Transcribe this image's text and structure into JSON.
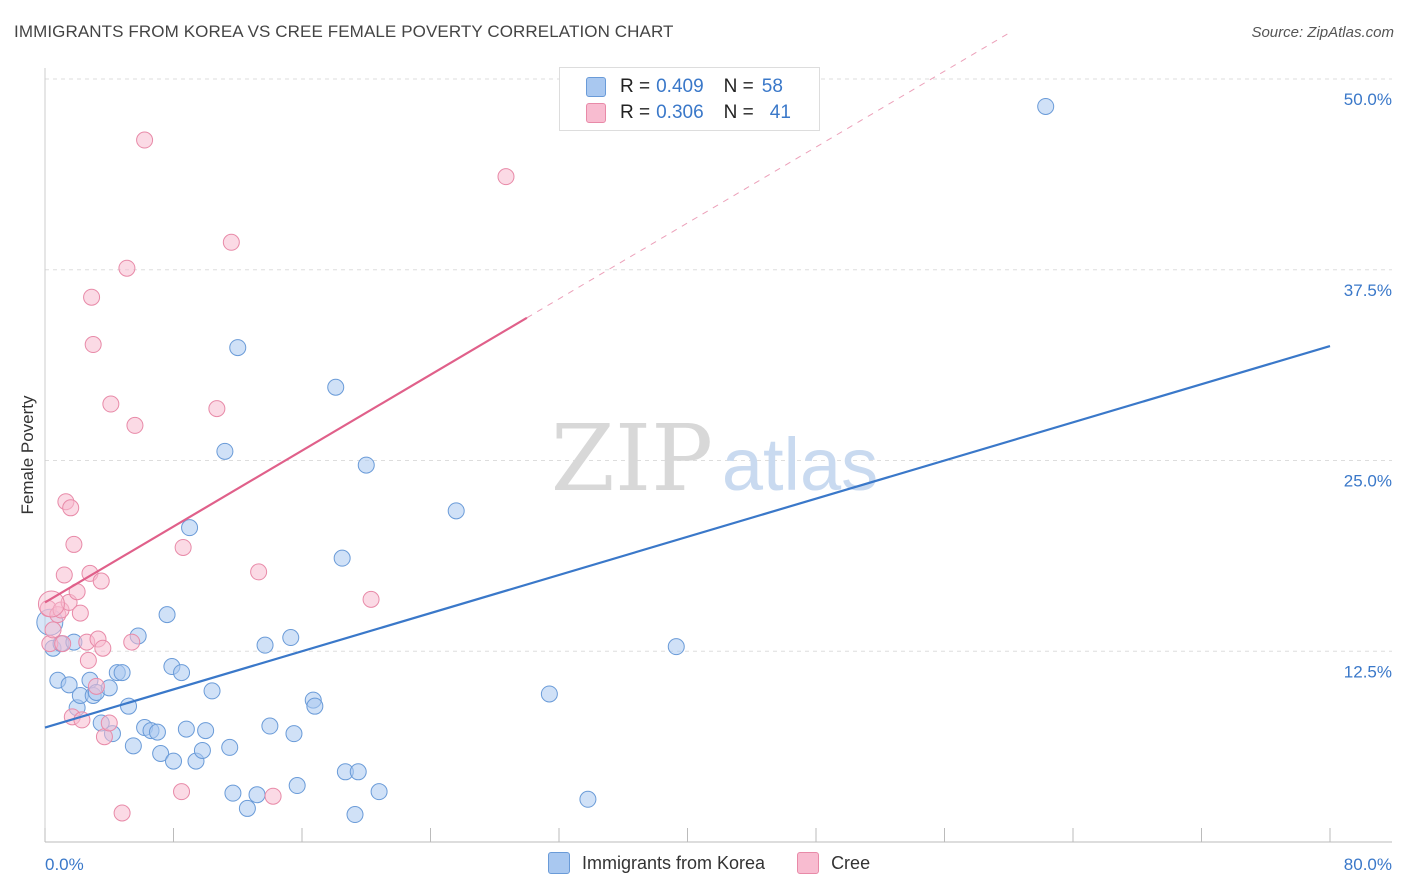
{
  "title": "IMMIGRANTS FROM KOREA VS CREE FEMALE POVERTY CORRELATION CHART",
  "source": "Source: ZipAtlas.com",
  "watermark": {
    "zip": "ZIP",
    "atlas": "atlas"
  },
  "legend": {
    "series": [
      {
        "r_label": "R =",
        "r_value": "0.409",
        "n_label": "N =",
        "n_value": "58"
      },
      {
        "r_label": "R =",
        "r_value": "0.306",
        "n_label": "N =",
        "n_value": "41"
      }
    ]
  },
  "colors": {
    "korea_fill": "#a9c8f0",
    "korea_stroke": "#6a9bd8",
    "korea_line": "#3a78c9",
    "cree_fill": "#f8bcd0",
    "cree_stroke": "#e88aa8",
    "cree_line": "#e0608a",
    "grid": "#dddddd",
    "tick_text": "#3a78c9"
  },
  "chart_data": {
    "type": "scatter",
    "title": "IMMIGRANTS FROM KOREA VS CREE FEMALE POVERTY CORRELATION CHART",
    "xlabel": "",
    "ylabel": "Female Poverty",
    "xlim": [
      0,
      80
    ],
    "ylim": [
      0,
      50
    ],
    "x_tick_labels": [
      "0.0%",
      "80.0%"
    ],
    "y_ticks": [
      12.5,
      25.0,
      37.5,
      50.0
    ],
    "y_tick_labels": [
      "12.5%",
      "25.0%",
      "37.5%",
      "50.0%"
    ],
    "grid": true,
    "series": [
      {
        "name": "Immigrants from Korea",
        "r": 0.409,
        "n": 58,
        "trend": {
          "x0": 0,
          "y0": 7.5,
          "x1": 80,
          "y1": 32.5,
          "dashed_from": null
        },
        "points": [
          [
            0.5,
            12.7
          ],
          [
            0.8,
            10.6
          ],
          [
            1.0,
            13.0
          ],
          [
            1.5,
            10.3
          ],
          [
            1.8,
            13.1
          ],
          [
            2.0,
            8.8
          ],
          [
            2.2,
            9.6
          ],
          [
            2.8,
            10.6
          ],
          [
            3.0,
            9.6
          ],
          [
            3.2,
            9.8
          ],
          [
            3.5,
            7.8
          ],
          [
            4.0,
            10.1
          ],
          [
            4.2,
            7.1
          ],
          [
            4.5,
            11.1
          ],
          [
            4.8,
            11.1
          ],
          [
            5.2,
            8.9
          ],
          [
            5.5,
            6.3
          ],
          [
            5.8,
            13.5
          ],
          [
            6.2,
            7.5
          ],
          [
            6.6,
            7.3
          ],
          [
            7.0,
            7.2
          ],
          [
            7.2,
            5.8
          ],
          [
            7.6,
            14.9
          ],
          [
            7.9,
            11.5
          ],
          [
            8.0,
            5.3
          ],
          [
            8.5,
            11.1
          ],
          [
            8.8,
            7.4
          ],
          [
            9.0,
            20.6
          ],
          [
            9.4,
            5.3
          ],
          [
            9.8,
            6.0
          ],
          [
            10.0,
            7.3
          ],
          [
            10.4,
            9.9
          ],
          [
            11.2,
            25.6
          ],
          [
            11.5,
            6.2
          ],
          [
            11.7,
            3.2
          ],
          [
            12.0,
            32.4
          ],
          [
            12.6,
            2.2
          ],
          [
            13.2,
            3.1
          ],
          [
            13.7,
            12.9
          ],
          [
            14.0,
            7.6
          ],
          [
            15.3,
            13.4
          ],
          [
            15.5,
            7.1
          ],
          [
            15.7,
            3.7
          ],
          [
            16.7,
            9.3
          ],
          [
            16.8,
            8.9
          ],
          [
            18.1,
            29.8
          ],
          [
            18.5,
            18.6
          ],
          [
            18.7,
            4.6
          ],
          [
            19.3,
            1.8
          ],
          [
            19.5,
            4.6
          ],
          [
            20.0,
            24.7
          ],
          [
            20.8,
            3.3
          ],
          [
            25.6,
            21.7
          ],
          [
            31.4,
            9.7
          ],
          [
            33.8,
            2.8
          ],
          [
            39.3,
            12.8
          ],
          [
            62.3,
            48.2
          ],
          [
            0.3,
            14.4
          ]
        ]
      },
      {
        "name": "Cree",
        "r": 0.306,
        "n": 41,
        "trend": {
          "x0": 0,
          "y0": 15.7,
          "x1": 60,
          "y1": 53.0,
          "dashed_from": 30
        },
        "points": [
          [
            0.2,
            15.3
          ],
          [
            0.3,
            13.0
          ],
          [
            0.5,
            13.9
          ],
          [
            0.8,
            14.9
          ],
          [
            1.0,
            15.2
          ],
          [
            1.1,
            13.0
          ],
          [
            1.2,
            17.5
          ],
          [
            1.3,
            22.3
          ],
          [
            1.5,
            15.7
          ],
          [
            1.6,
            21.9
          ],
          [
            1.7,
            8.2
          ],
          [
            1.8,
            19.5
          ],
          [
            2.0,
            16.4
          ],
          [
            2.2,
            15.0
          ],
          [
            2.3,
            8.0
          ],
          [
            2.6,
            13.1
          ],
          [
            2.7,
            11.9
          ],
          [
            2.8,
            17.6
          ],
          [
            2.9,
            35.7
          ],
          [
            3.0,
            32.6
          ],
          [
            3.2,
            10.2
          ],
          [
            3.3,
            13.3
          ],
          [
            3.5,
            17.1
          ],
          [
            3.6,
            12.7
          ],
          [
            3.7,
            6.9
          ],
          [
            4.0,
            7.8
          ],
          [
            4.1,
            28.7
          ],
          [
            4.8,
            1.9
          ],
          [
            5.1,
            37.6
          ],
          [
            5.4,
            13.1
          ],
          [
            5.6,
            27.3
          ],
          [
            6.2,
            46.0
          ],
          [
            8.5,
            3.3
          ],
          [
            8.6,
            19.3
          ],
          [
            10.7,
            28.4
          ],
          [
            11.6,
            39.3
          ],
          [
            13.3,
            17.7
          ],
          [
            14.2,
            3.0
          ],
          [
            20.3,
            15.9
          ],
          [
            28.7,
            43.6
          ],
          [
            0.4,
            15.6
          ]
        ]
      }
    ],
    "legend_position": "top-center"
  }
}
